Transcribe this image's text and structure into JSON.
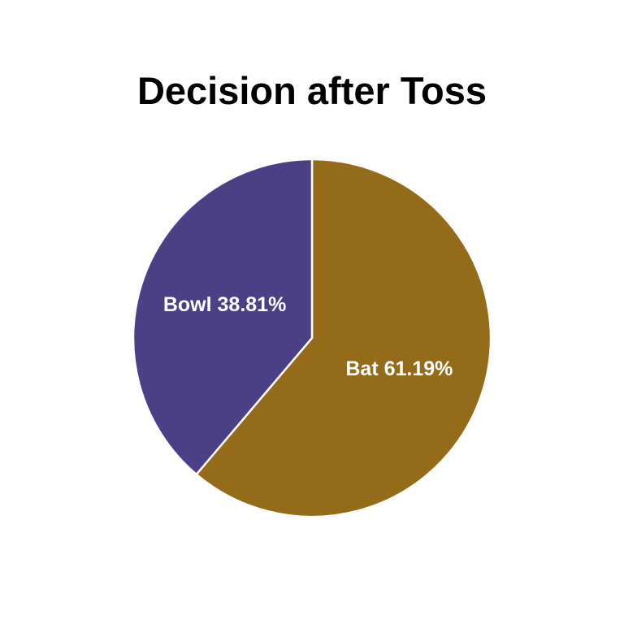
{
  "chart_data": {
    "type": "pie",
    "title": "Decision after Toss",
    "slices": [
      {
        "name": "Bat",
        "value": 61.19,
        "label": "Bat 61.19%",
        "color": "#936B19"
      },
      {
        "name": "Bowl",
        "value": 38.81,
        "label": "Bowl 38.81%",
        "color": "#4B4086"
      }
    ],
    "start_angle": "12 o'clock",
    "direction": "clockwise",
    "border_color": "#ffffff",
    "legend": "none"
  }
}
